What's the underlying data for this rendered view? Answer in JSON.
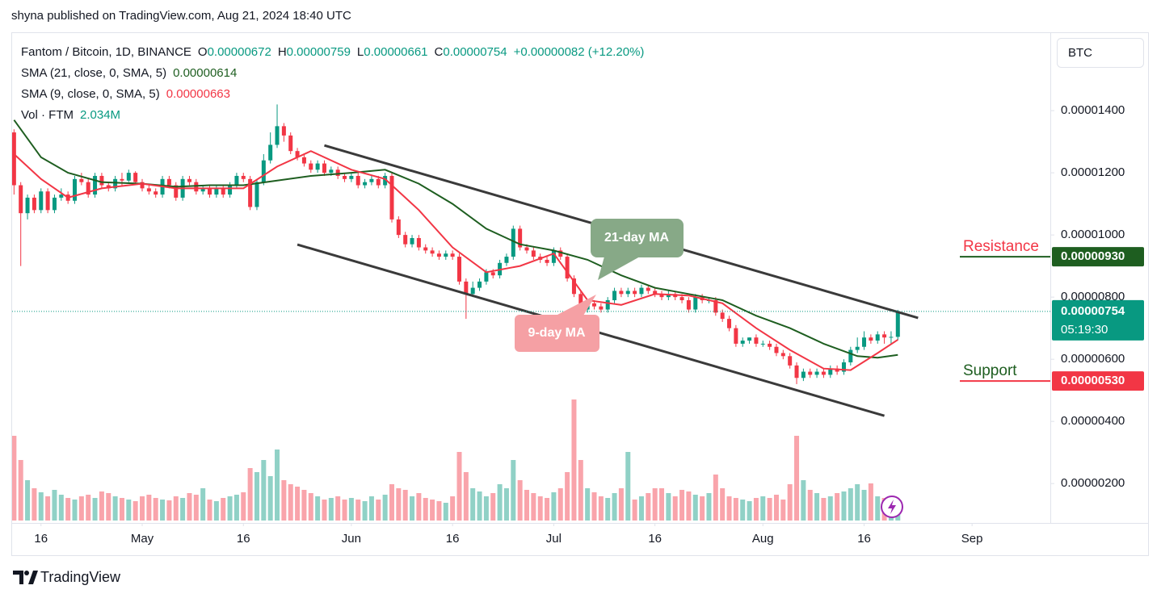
{
  "header": {
    "text": "shyna published on TradingView.com, Aug 21, 2024 18:40 UTC"
  },
  "chart_data": {
    "type": "candlestick",
    "title": "Fantom / Bitcoin, 1D, BINANCE",
    "ohlc_legend": [
      {
        "key": "O",
        "value_label": "0.00000672"
      },
      {
        "key": "H",
        "value_label": "0.00000759"
      },
      {
        "key": "L",
        "value_label": "0.00000661"
      },
      {
        "key": "C",
        "value_label": "0.00000754"
      }
    ],
    "change_label": "+0.00000082 (+12.20%)",
    "currency": "BTC",
    "up_color": "#089981",
    "down_color": "#f23645",
    "x": [
      "2024-04-12",
      "2024-04-13",
      "2024-04-14",
      "2024-04-15",
      "2024-04-16",
      "2024-04-17",
      "2024-04-18",
      "2024-04-19",
      "2024-04-20",
      "2024-04-21",
      "2024-04-22",
      "2024-04-23",
      "2024-04-24",
      "2024-04-25",
      "2024-04-26",
      "2024-04-27",
      "2024-04-28",
      "2024-04-29",
      "2024-04-30",
      "2024-05-01",
      "2024-05-02",
      "2024-05-03",
      "2024-05-04",
      "2024-05-05",
      "2024-05-06",
      "2024-05-07",
      "2024-05-08",
      "2024-05-09",
      "2024-05-10",
      "2024-05-11",
      "2024-05-12",
      "2024-05-13",
      "2024-05-14",
      "2024-05-15",
      "2024-05-16",
      "2024-05-17",
      "2024-05-18",
      "2024-05-19",
      "2024-05-20",
      "2024-05-21",
      "2024-05-22",
      "2024-05-23",
      "2024-05-24",
      "2024-05-25",
      "2024-05-26",
      "2024-05-27",
      "2024-05-28",
      "2024-05-29",
      "2024-05-30",
      "2024-05-31",
      "2024-06-01",
      "2024-06-02",
      "2024-06-03",
      "2024-06-04",
      "2024-06-05",
      "2024-06-06",
      "2024-06-07",
      "2024-06-08",
      "2024-06-09",
      "2024-06-10",
      "2024-06-11",
      "2024-06-12",
      "2024-06-13",
      "2024-06-14",
      "2024-06-15",
      "2024-06-16",
      "2024-06-17",
      "2024-06-18",
      "2024-06-19",
      "2024-06-20",
      "2024-06-21",
      "2024-06-22",
      "2024-06-23",
      "2024-06-24",
      "2024-06-25",
      "2024-06-26",
      "2024-06-27",
      "2024-06-28",
      "2024-06-29",
      "2024-06-30",
      "2024-07-01",
      "2024-07-02",
      "2024-07-03",
      "2024-07-04",
      "2024-07-05",
      "2024-07-06",
      "2024-07-07",
      "2024-07-08",
      "2024-07-09",
      "2024-07-10",
      "2024-07-11",
      "2024-07-12",
      "2024-07-13",
      "2024-07-14",
      "2024-07-15",
      "2024-07-16",
      "2024-07-17",
      "2024-07-18",
      "2024-07-19",
      "2024-07-20",
      "2024-07-21",
      "2024-07-22",
      "2024-07-23",
      "2024-07-24",
      "2024-07-25",
      "2024-07-26",
      "2024-07-27",
      "2024-07-28",
      "2024-07-29",
      "2024-07-30",
      "2024-07-31",
      "2024-08-01",
      "2024-08-02",
      "2024-08-03",
      "2024-08-04",
      "2024-08-05",
      "2024-08-06",
      "2024-08-07",
      "2024-08-08",
      "2024-08-09",
      "2024-08-10",
      "2024-08-11",
      "2024-08-12",
      "2024-08-13",
      "2024-08-14",
      "2024-08-15",
      "2024-08-16",
      "2024-08-17",
      "2024-08-18",
      "2024-08-19",
      "2024-08-20",
      "2024-08-21"
    ],
    "open": [
      1.33e-05,
      1.16e-05,
      1.07e-05,
      1.12e-05,
      1.08e-05,
      1.14e-05,
      1.08e-05,
      1.12e-05,
      1.13e-05,
      1.11e-05,
      1.18e-05,
      1.17e-05,
      1.13e-05,
      1.19e-05,
      1.16e-05,
      1.15e-05,
      1.18e-05,
      1.175e-05,
      1.2e-05,
      1.17e-05,
      1.15e-05,
      1.14e-05,
      1.13e-05,
      1.18e-05,
      1.16e-05,
      1.12e-05,
      1.18e-05,
      1.17e-05,
      1.14e-05,
      1.15e-05,
      1.13e-05,
      1.15e-05,
      1.13e-05,
      1.16e-05,
      1.19e-05,
      1.18e-05,
      1.09e-05,
      1.17e-05,
      1.24e-05,
      1.29e-05,
      1.35e-05,
      1.32e-05,
      1.27e-05,
      1.25e-05,
      1.23e-05,
      1.21e-05,
      1.23e-05,
      1.2e-05,
      1.21e-05,
      1.19e-05,
      1.18e-05,
      1.19e-05,
      1.16e-05,
      1.17e-05,
      1.18e-05,
      1.16e-05,
      1.19e-05,
      1.05e-05,
      1e-05,
      9.7e-06,
      9.9e-06,
      9.6e-06,
      9.5e-06,
      9.4e-06,
      9.3e-06,
      9.4e-06,
      9.3e-06,
      8.5e-06,
      8.1e-06,
      8.3e-06,
      8.5e-06,
      8.8e-06,
      8.7e-06,
      9.1e-06,
      9.3e-06,
      1.02e-05,
      9.6e-06,
      9.5e-06,
      9.3e-06,
      9.2e-06,
      9.1e-06,
      9.5e-06,
      9.3e-06,
      8.6e-06,
      8.1e-06,
      7.6e-06,
      7.8e-06,
      7.7e-06,
      7.6e-06,
      7.9e-06,
      8.2e-06,
      8.1e-06,
      8.2e-06,
      8.1e-06,
      8.3e-06,
      8.2e-06,
      8.1e-06,
      8e-06,
      8.1e-06,
      8e-06,
      7.9e-06,
      7.6e-06,
      8e-06,
      7.9e-06,
      7.9e-06,
      7.5e-06,
      7.3e-06,
      7e-06,
      6.5e-06,
      6.6e-06,
      6.7e-06,
      6.5e-06,
      6.5e-06,
      6.4e-06,
      6.2e-06,
      6.1e-06,
      5.8e-06,
      5.4e-06,
      5.6e-06,
      5.5e-06,
      5.6e-06,
      5.5e-06,
      5.7e-06,
      5.6e-06,
      5.9e-06,
      6.3e-06,
      6.4e-06,
      6.7e-06,
      6.6e-06,
      6.8e-06,
      6.7e-06,
      6.72e-06
    ],
    "high": [
      1.34e-05,
      1.17e-05,
      1.13e-05,
      1.13e-05,
      1.15e-05,
      1.15e-05,
      1.13e-05,
      1.15e-05,
      1.14e-05,
      1.19e-05,
      1.2e-05,
      1.18e-05,
      1.2e-05,
      1.2e-05,
      1.17e-05,
      1.19e-05,
      1.2e-05,
      1.21e-05,
      1.205e-05,
      1.18e-05,
      1.16e-05,
      1.15e-05,
      1.19e-05,
      1.19e-05,
      1.17e-05,
      1.19e-05,
      1.19e-05,
      1.18e-05,
      1.16e-05,
      1.16e-05,
      1.16e-05,
      1.16e-05,
      1.17e-05,
      1.2e-05,
      1.2e-05,
      1.19e-05,
      1.18e-05,
      1.26e-05,
      1.33e-05,
      1.42e-05,
      1.36e-05,
      1.33e-05,
      1.28e-05,
      1.26e-05,
      1.24e-05,
      1.24e-05,
      1.24e-05,
      1.22e-05,
      1.22e-05,
      1.2e-05,
      1.2e-05,
      1.2e-05,
      1.18e-05,
      1.19e-05,
      1.19e-05,
      1.2e-05,
      1.2e-05,
      1.06e-05,
      1.01e-05,
      1e-05,
      1e-05,
      9.7e-06,
      9.6e-06,
      9.5e-06,
      9.5e-06,
      9.5e-06,
      9.4e-06,
      8.6e-06,
      8.5e-06,
      8.6e-06,
      8.9e-06,
      8.9e-06,
      9.2e-06,
      9.4e-06,
      1.03e-05,
      1.03e-05,
      9.7e-06,
      9.6e-06,
      9.4e-06,
      9.3e-06,
      9.6e-06,
      9.6e-06,
      9.4e-06,
      8.7e-06,
      8.2e-06,
      7.9e-06,
      7.9e-06,
      7.8e-06,
      8e-06,
      8.3e-06,
      8.3e-06,
      8.3e-06,
      8.3e-06,
      8.4e-06,
      8.4e-06,
      8.3e-06,
      8.2e-06,
      8.2e-06,
      8.2e-06,
      8.1e-06,
      8e-06,
      8.1e-06,
      8.1e-06,
      8e-06,
      8e-06,
      7.6e-06,
      7.4e-06,
      7.1e-06,
      6.7e-06,
      6.7e-06,
      6.8e-06,
      6.6e-06,
      6.6e-06,
      6.5e-06,
      6.3e-06,
      6.2e-06,
      5.9e-06,
      5.7e-06,
      5.7e-06,
      5.7e-06,
      5.7e-06,
      5.8e-06,
      5.8e-06,
      6e-06,
      6.4e-06,
      6.7e-06,
      6.9e-06,
      6.8e-06,
      6.9e-06,
      6.9e-06,
      6.9e-06,
      7.59e-06
    ],
    "low": [
      1.13e-05,
      9e-06,
      1.05e-05,
      1.07e-05,
      1.07e-05,
      1.07e-05,
      1.07e-05,
      1.11e-05,
      1.1e-05,
      1.1e-05,
      1.16e-05,
      1.12e-05,
      1.12e-05,
      1.15e-05,
      1.14e-05,
      1.14e-05,
      1.16e-05,
      1.17e-05,
      1.16e-05,
      1.14e-05,
      1.13e-05,
      1.12e-05,
      1.12e-05,
      1.15e-05,
      1.11e-05,
      1.11e-05,
      1.16e-05,
      1.13e-05,
      1.13e-05,
      1.12e-05,
      1.12e-05,
      1.12e-05,
      1.12e-05,
      1.15e-05,
      1.17e-05,
      1.08e-05,
      1.08e-05,
      1.16e-05,
      1.23e-05,
      1.28e-05,
      1.3e-05,
      1.26e-05,
      1.24e-05,
      1.22e-05,
      1.2e-05,
      1.2e-05,
      1.19e-05,
      1.19e-05,
      1.18e-05,
      1.17e-05,
      1.17e-05,
      1.15e-05,
      1.15e-05,
      1.16e-05,
      1.15e-05,
      1.15e-05,
      1.04e-05,
      9.9e-06,
      9.6e-06,
      9.6e-06,
      9.5e-06,
      9.4e-06,
      9.3e-06,
      9.2e-06,
      9.2e-06,
      9.2e-06,
      8.4e-06,
      7.3e-06,
      8e-06,
      8.2e-06,
      8.4e-06,
      8.6e-06,
      8.6e-06,
      9e-06,
      9.2e-06,
      9.5e-06,
      9.4e-06,
      9.2e-06,
      9.1e-06,
      9e-06,
      9e-06,
      9.2e-06,
      8.5e-06,
      8e-06,
      7.4e-06,
      7.5e-06,
      7.6e-06,
      7.5e-06,
      7.5e-06,
      7.8e-06,
      8e-06,
      8e-06,
      8e-06,
      8e-06,
      8.1e-06,
      8e-06,
      7.9e-06,
      7.9e-06,
      7.9e-06,
      7.8e-06,
      7.5e-06,
      7.5e-06,
      7.8e-06,
      7.8e-06,
      7.4e-06,
      7.2e-06,
      6.9e-06,
      6.4e-06,
      6.4e-06,
      6.5e-06,
      6.4e-06,
      6.4e-06,
      6.3e-06,
      6.1e-06,
      6e-06,
      5.7e-06,
      5.2e-06,
      5.3e-06,
      5.4e-06,
      5.4e-06,
      5.4e-06,
      5.4e-06,
      5.5e-06,
      5.5e-06,
      5.8e-06,
      6.2e-06,
      6.3e-06,
      6.5e-06,
      6.5e-06,
      6.5e-06,
      6.5e-06,
      6.61e-06
    ],
    "close": [
      1.16e-05,
      1.07e-05,
      1.12e-05,
      1.08e-05,
      1.14e-05,
      1.08e-05,
      1.12e-05,
      1.13e-05,
      1.11e-05,
      1.18e-05,
      1.17e-05,
      1.13e-05,
      1.19e-05,
      1.16e-05,
      1.15e-05,
      1.18e-05,
      1.175e-05,
      1.2e-05,
      1.17e-05,
      1.15e-05,
      1.14e-05,
      1.13e-05,
      1.18e-05,
      1.16e-05,
      1.12e-05,
      1.18e-05,
      1.17e-05,
      1.14e-05,
      1.15e-05,
      1.13e-05,
      1.15e-05,
      1.13e-05,
      1.16e-05,
      1.19e-05,
      1.18e-05,
      1.09e-05,
      1.17e-05,
      1.24e-05,
      1.29e-05,
      1.35e-05,
      1.32e-05,
      1.27e-05,
      1.25e-05,
      1.23e-05,
      1.21e-05,
      1.23e-05,
      1.2e-05,
      1.21e-05,
      1.19e-05,
      1.18e-05,
      1.19e-05,
      1.16e-05,
      1.17e-05,
      1.18e-05,
      1.16e-05,
      1.19e-05,
      1.05e-05,
      1e-05,
      9.7e-06,
      9.9e-06,
      9.6e-06,
      9.5e-06,
      9.4e-06,
      9.3e-06,
      9.4e-06,
      9.3e-06,
      8.5e-06,
      8.1e-06,
      8.3e-06,
      8.5e-06,
      8.8e-06,
      8.7e-06,
      9.1e-06,
      9.3e-06,
      1.02e-05,
      9.6e-06,
      9.5e-06,
      9.3e-06,
      9.2e-06,
      9.1e-06,
      9.5e-06,
      9.3e-06,
      8.6e-06,
      8.1e-06,
      7.6e-06,
      7.8e-06,
      7.7e-06,
      7.6e-06,
      7.9e-06,
      8.2e-06,
      8.1e-06,
      8.2e-06,
      8.1e-06,
      8.3e-06,
      8.2e-06,
      8.1e-06,
      8e-06,
      8.1e-06,
      8e-06,
      7.9e-06,
      7.6e-06,
      8e-06,
      7.9e-06,
      7.9e-06,
      7.5e-06,
      7.3e-06,
      7e-06,
      6.5e-06,
      6.6e-06,
      6.7e-06,
      6.5e-06,
      6.5e-06,
      6.4e-06,
      6.2e-06,
      6.1e-06,
      5.8e-06,
      5.4e-06,
      5.6e-06,
      5.5e-06,
      5.6e-06,
      5.5e-06,
      5.7e-06,
      5.6e-06,
      5.9e-06,
      6.3e-06,
      6.4e-06,
      6.7e-06,
      6.6e-06,
      6.8e-06,
      6.7e-06,
      6.72e-06,
      7.54e-06
    ],
    "volume": [
      10500000.0,
      7500000.0,
      5000000.0,
      4000000.0,
      3500000.0,
      3000000.0,
      3800000.0,
      3200000.0,
      2800000.0,
      2600000.0,
      3000000.0,
      3200000.0,
      2800000.0,
      3600000.0,
      3400000.0,
      3000000.0,
      2800000.0,
      2600000.0,
      2400000.0,
      3000000.0,
      3200000.0,
      2800000.0,
      2600000.0,
      2500000.0,
      3000000.0,
      2800000.0,
      3400000.0,
      3200000.0,
      4000000.0,
      2600000.0,
      2400000.0,
      2800000.0,
      3000000.0,
      3200000.0,
      3500000.0,
      6500000.0,
      6000000.0,
      7500000.0,
      5500000.0,
      8800000.0,
      5000000.0,
      4500000.0,
      4200000.0,
      3800000.0,
      3400000.0,
      3000000.0,
      2600000.0,
      2800000.0,
      3000000.0,
      2600000.0,
      2800000.0,
      2600000.0,
      2400000.0,
      3000000.0,
      2600000.0,
      3200000.0,
      4500000.0,
      4000000.0,
      3800000.0,
      3000000.0,
      3400000.0,
      2800000.0,
      2600000.0,
      2400000.0,
      2200000.0,
      3000000.0,
      8500000.0,
      6000000.0,
      4000000.0,
      3600000.0,
      3000000.0,
      3400000.0,
      4500000.0,
      4000000.0,
      7500000.0,
      5000000.0,
      3800000.0,
      3400000.0,
      3000000.0,
      2800000.0,
      3500000.0,
      4000000.0,
      6000000.0,
      15000000.0,
      7500000.0,
      4000000.0,
      3500000.0,
      3000000.0,
      2800000.0,
      3400000.0,
      4000000.0,
      8500000.0,
      2600000.0,
      3000000.0,
      3400000.0,
      4000000.0,
      4000000.0,
      3400000.0,
      3000000.0,
      3800000.0,
      3600000.0,
      3200000.0,
      3000000.0,
      3400000.0,
      5700000.0,
      4000000.0,
      3000000.0,
      2800000.0,
      2600000.0,
      2400000.0,
      2800000.0,
      3000000.0,
      2800000.0,
      3200000.0,
      2600000.0,
      4500000.0,
      10500000.0,
      5000000.0,
      3800000.0,
      3400000.0,
      2800000.0,
      3000000.0,
      3400000.0,
      3600000.0,
      4000000.0,
      4500000.0,
      3800000.0,
      4600000.0,
      3000000.0,
      2800000.0,
      2600000.0,
      2034000.0
    ],
    "volume_legend": {
      "name": "Vol · FTM",
      "value_label": "2.034M"
    },
    "series": [
      {
        "name": "SMA (21, close, 0, SMA, 5)",
        "color": "#1e5e20",
        "value_label": "0.00000614",
        "x": [
          "2024-04-12",
          "2024-04-16",
          "2024-04-20",
          "2024-04-25",
          "2024-05-01",
          "2024-05-06",
          "2024-05-11",
          "2024-05-16",
          "2024-05-21",
          "2024-05-26",
          "2024-06-01",
          "2024-06-06",
          "2024-06-11",
          "2024-06-16",
          "2024-06-21",
          "2024-06-26",
          "2024-07-01",
          "2024-07-06",
          "2024-07-11",
          "2024-07-16",
          "2024-07-21",
          "2024-07-26",
          "2024-07-31",
          "2024-08-05",
          "2024-08-10",
          "2024-08-15",
          "2024-08-18",
          "2024-08-21"
        ],
        "values": [
          1.37e-05,
          1.25e-05,
          1.2e-05,
          1.17e-05,
          1.165e-05,
          1.155e-05,
          1.16e-05,
          1.16e-05,
          1.175e-05,
          1.19e-05,
          1.2e-05,
          1.21e-05,
          1.165e-05,
          1.1e-05,
          1.02e-05,
          9.7e-06,
          9.5e-06,
          9.2e-06,
          8.7e-06,
          8.3e-06,
          8.1e-06,
          7.9e-06,
          7.4e-06,
          7e-06,
          6.5e-06,
          6.1e-06,
          6.05e-06,
          6.14e-06
        ]
      },
      {
        "name": "SMA (9, close, 0, SMA, 5)",
        "color": "#f23645",
        "value_label": "0.00000663",
        "x": [
          "2024-04-12",
          "2024-04-16",
          "2024-04-20",
          "2024-04-25",
          "2024-05-01",
          "2024-05-06",
          "2024-05-11",
          "2024-05-16",
          "2024-05-21",
          "2024-05-26",
          "2024-06-01",
          "2024-06-06",
          "2024-06-11",
          "2024-06-16",
          "2024-06-21",
          "2024-06-26",
          "2024-07-01",
          "2024-07-06",
          "2024-07-11",
          "2024-07-16",
          "2024-07-21",
          "2024-07-26",
          "2024-07-31",
          "2024-08-05",
          "2024-08-10",
          "2024-08-14",
          "2024-08-18",
          "2024-08-21"
        ],
        "values": [
          1.26e-05,
          1.18e-05,
          1.12e-05,
          1.15e-05,
          1.165e-05,
          1.15e-05,
          1.15e-05,
          1.15e-05,
          1.22e-05,
          1.27e-05,
          1.21e-05,
          1.18e-05,
          1.08e-05,
          9.6e-06,
          8.8e-06,
          9e-06,
          9.4e-06,
          7.9e-06,
          7.75e-06,
          8.1e-06,
          8.05e-06,
          7.8e-06,
          7e-06,
          6.3e-06,
          5.7e-06,
          5.65e-06,
          6.2e-06,
          6.63e-06
        ]
      }
    ],
    "trendlines": [
      {
        "x": [
          "2024-05-28",
          "2024-08-24"
        ],
        "values": [
          1.288e-05,
          7.33e-06
        ]
      },
      {
        "x": [
          "2024-05-24",
          "2024-08-19"
        ],
        "values": [
          9.69e-06,
          4.18e-06
        ]
      }
    ],
    "annotations": [
      {
        "text": "21-day MA"
      },
      {
        "text": "9-day MA"
      }
    ],
    "resistance": {
      "text": "Resistance",
      "value": 9.3e-06,
      "value_label": "0.00000930"
    },
    "support": {
      "text": "Support",
      "value": 5.3e-06,
      "value_label": "0.00000530"
    },
    "last_price": {
      "value_label": "0.00000754",
      "countdown": "05:19:30"
    },
    "xlim": [
      "2024-04-11",
      "2024-09-12"
    ],
    "xticks": [
      {
        "value": "2024-04-16",
        "label": "16"
      },
      {
        "value": "2024-05-01",
        "label": "May"
      },
      {
        "value": "2024-05-16",
        "label": "16"
      },
      {
        "value": "2024-06-01",
        "label": "Jun"
      },
      {
        "value": "2024-06-16",
        "label": "16"
      },
      {
        "value": "2024-07-01",
        "label": "Jul"
      },
      {
        "value": "2024-07-16",
        "label": "16"
      },
      {
        "value": "2024-08-01",
        "label": "Aug"
      },
      {
        "value": "2024-08-16",
        "label": "16"
      },
      {
        "value": "2024-09-01",
        "label": "Sep"
      }
    ],
    "ylim": [
      8.1e-07,
      1.647e-05
    ],
    "yticks": [
      {
        "value": 1.4e-05,
        "label": "0.00001400"
      },
      {
        "value": 1.2e-05,
        "label": "0.00001200"
      },
      {
        "value": 1e-05,
        "label": "0.00001000"
      },
      {
        "value": 8e-06,
        "label": "0.00000800"
      },
      {
        "value": 6e-06,
        "label": "0.00000600"
      },
      {
        "value": 4e-06,
        "label": "0.00000400"
      },
      {
        "value": 2e-06,
        "label": "0.00000200"
      }
    ],
    "grid": false
  },
  "footer": {
    "brand": "TradingView"
  }
}
